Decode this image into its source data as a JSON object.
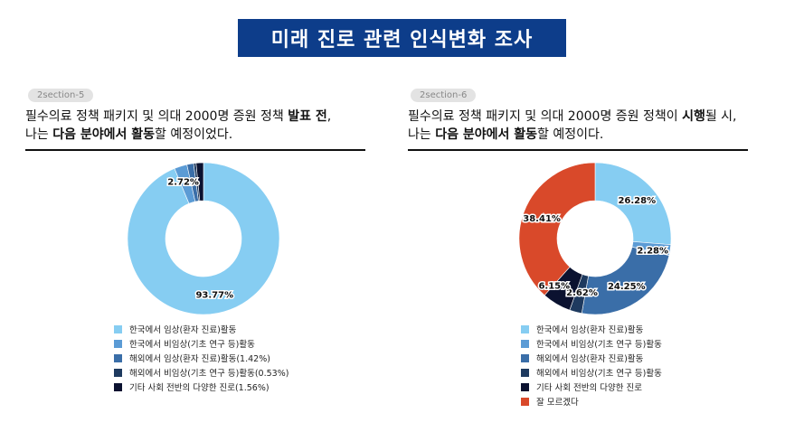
{
  "page": {
    "title": "미래 진로 관련 인식변화 조사"
  },
  "colors": {
    "light_blue": "#86cdf2",
    "mid_blue": "#5b9bd5",
    "steel_blue": "#3a6ea8",
    "navy": "#1e3a5f",
    "black_navy": "#0b1230",
    "orange": "#d9492a"
  },
  "panels": [
    {
      "tag": "2section-5",
      "question": {
        "line1": "필수의료 정책 패키지 및 의대 2000명 증원 정책 ",
        "line1_bold": "발표 전",
        "line1_end": ",",
        "line2_start": "나는 ",
        "line2_bold": "다음 분야에서 활동",
        "line2_end": "할 예정이었다."
      }
    },
    {
      "tag": "2section-6",
      "question": {
        "line1": "필수의료 정책 패키지 및 의대 2000명 증원 정책이 ",
        "line1_bold": "시행",
        "line1_end": "될 시,",
        "line2_start": "나는 ",
        "line2_bold": "다음 분야에서 활동",
        "line2_end": "할 예정이다."
      }
    }
  ],
  "chart_data": [
    {
      "type": "pie",
      "donut": true,
      "categories": [
        "한국에서 임상(환자 진료)활동",
        "한국에서 비임상(기초 연구 등)활동",
        "해외에서 임상(환자 진료)활동(1.42%)",
        "해외에서 비임상(기초 연구 등)활동(0.53%)",
        "기타 사회 전반의 다양한 진로(1.56%)"
      ],
      "values": [
        93.77,
        2.72,
        1.42,
        0.53,
        1.56
      ],
      "colors": [
        "#86cdf2",
        "#5b9bd5",
        "#3a6ea8",
        "#1e3a5f",
        "#0b1230"
      ],
      "data_labels": [
        "93.77%",
        "2.72%",
        "",
        "",
        ""
      ],
      "legend_position": "bottom"
    },
    {
      "type": "pie",
      "donut": true,
      "categories": [
        "한국에서 임상(환자 진료)활동",
        "한국에서 비임상(기초 연구 등)활동",
        "해외에서 임상(환자 진료)활동",
        "해외에서 비임상(기초 연구 등)활동",
        "기타 사회 전반의 다양한 진로",
        "잘 모르겠다"
      ],
      "values": [
        26.28,
        2.28,
        24.25,
        2.62,
        6.15,
        38.41
      ],
      "colors": [
        "#86cdf2",
        "#5b9bd5",
        "#3a6ea8",
        "#1e3a5f",
        "#0b1230",
        "#d9492a"
      ],
      "data_labels": [
        "26.28%",
        "2.28%",
        "24.25%",
        "2.62%",
        "6.15%",
        "38.41%"
      ],
      "legend_position": "bottom"
    }
  ]
}
